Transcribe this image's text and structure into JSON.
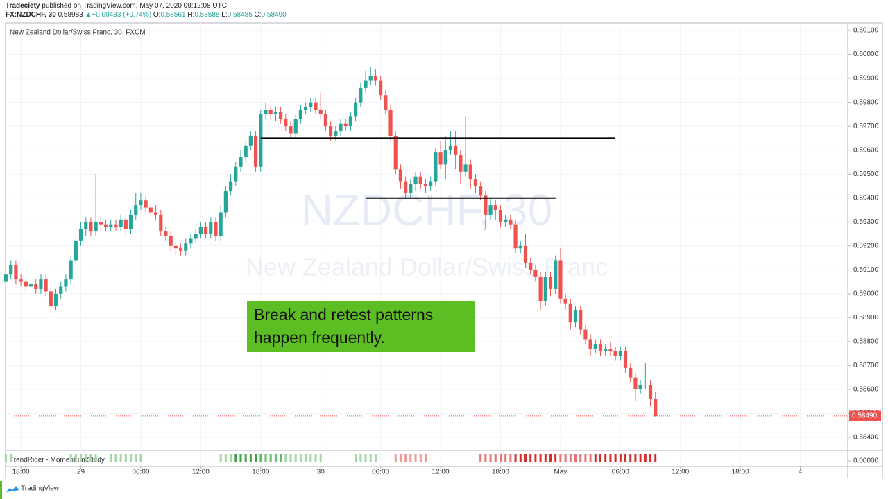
{
  "header": {
    "author": "Tradeciety",
    "published": "published on TradingView.com, May 07, 2020 09:12:08 UTC",
    "symbol": "FX:NZDCHF, 30",
    "price": "0.58983",
    "arrow": "▲",
    "change": "+0.00433 (+0.74%)",
    "o_label": "O:",
    "o": "0.58561",
    "h_label": "H:",
    "h": "0.58588",
    "l_label": "L:",
    "l": "0.58485",
    "c_label": "C:",
    "c": "0.58490"
  },
  "footer": {
    "brand": "TradingView"
  },
  "chart_data": {
    "type": "candlestick",
    "legend": "New Zealand Dollar/Swiss Franc, 30, FXCM",
    "watermark": [
      "NZDCHF, 30",
      "New Zealand Dollar/Swiss Franc"
    ],
    "annotation": [
      "Break and retest patterns",
      "happen frequently."
    ],
    "up_color": "#26a69a",
    "down_color": "#ef5350",
    "grid": true,
    "x": [
      0,
      1,
      2,
      3,
      4,
      5,
      6,
      7,
      8,
      9,
      10,
      11,
      12,
      13,
      14,
      15,
      16,
      17,
      18,
      19,
      20,
      21,
      22,
      23,
      24,
      25,
      26,
      27,
      28,
      29,
      30,
      31,
      32,
      33,
      34,
      35,
      36,
      37,
      38,
      39,
      40,
      41,
      42,
      43,
      44,
      45,
      46,
      47,
      48,
      49,
      50,
      51,
      52,
      53,
      54,
      55,
      56,
      57,
      58,
      59,
      60,
      61,
      62,
      63,
      64,
      65,
      66,
      67,
      68,
      69,
      70,
      71,
      72,
      73,
      74,
      75,
      76,
      77,
      78,
      79,
      80,
      81,
      82,
      83,
      84,
      85,
      86,
      87,
      88,
      89,
      90,
      91,
      92,
      93,
      94,
      95,
      96,
      97,
      98,
      99,
      100,
      101,
      102,
      103,
      104,
      105,
      106,
      107,
      108,
      109,
      110,
      111,
      112,
      113,
      114,
      115,
      116,
      117,
      118,
      119,
      120,
      121,
      122,
      123,
      124,
      125,
      126,
      127,
      128,
      129,
      130
    ],
    "open": [
      0.5905,
      0.5908,
      0.5912,
      0.5906,
      0.5905,
      0.5903,
      0.5904,
      0.5902,
      0.5906,
      0.5901,
      0.5895,
      0.59,
      0.5903,
      0.5906,
      0.5914,
      0.5922,
      0.5927,
      0.593,
      0.5926,
      0.593,
      0.5929,
      0.5928,
      0.5929,
      0.5928,
      0.5931,
      0.5927,
      0.5933,
      0.5937,
      0.5939,
      0.5936,
      0.5934,
      0.5933,
      0.5926,
      0.5924,
      0.592,
      0.5919,
      0.5918,
      0.5921,
      0.5923,
      0.5925,
      0.5928,
      0.5925,
      0.593,
      0.5924,
      0.5934,
      0.5943,
      0.5947,
      0.5953,
      0.5957,
      0.5962,
      0.5966,
      0.5953,
      0.5975,
      0.5977,
      0.5975,
      0.5976,
      0.5973,
      0.597,
      0.5967,
      0.5973,
      0.5977,
      0.5978,
      0.598,
      0.5977,
      0.5975,
      0.597,
      0.5966,
      0.5968,
      0.5971,
      0.597,
      0.5974,
      0.598,
      0.5986,
      0.5989,
      0.5991,
      0.5989,
      0.5983,
      0.5977,
      0.5966,
      0.5952,
      0.5947,
      0.5942,
      0.5946,
      0.5949,
      0.5946,
      0.5945,
      0.5947,
      0.5959,
      0.5954,
      0.596,
      0.5962,
      0.5958,
      0.5951,
      0.5954,
      0.5948,
      0.5945,
      0.5941,
      0.5933,
      0.5937,
      0.5935,
      0.593,
      0.5931,
      0.5929,
      0.5919,
      0.592,
      0.5913,
      0.591,
      0.5907,
      0.5897,
      0.5907,
      0.5902,
      0.5914,
      0.5898,
      0.5896,
      0.5888,
      0.5893,
      0.5885,
      0.5881,
      0.5877,
      0.5879,
      0.5876,
      0.5877,
      0.5876,
      0.5874,
      0.5876,
      0.5869,
      0.5865,
      0.586,
      0.5862,
      0.5862,
      0.5856
    ],
    "high": [
      0.591,
      0.5914,
      0.5914,
      0.5908,
      0.5907,
      0.5906,
      0.5906,
      0.5908,
      0.5908,
      0.5903,
      0.5902,
      0.5905,
      0.5908,
      0.5916,
      0.5924,
      0.593,
      0.5932,
      0.5932,
      0.595,
      0.5932,
      0.5931,
      0.5931,
      0.5931,
      0.5933,
      0.5933,
      0.5935,
      0.5942,
      0.5942,
      0.5941,
      0.5938,
      0.5937,
      0.5935,
      0.5928,
      0.5926,
      0.5922,
      0.5921,
      0.5923,
      0.5925,
      0.5927,
      0.593,
      0.593,
      0.5932,
      0.5932,
      0.5937,
      0.5945,
      0.595,
      0.5955,
      0.596,
      0.5964,
      0.5968,
      0.5968,
      0.5977,
      0.598,
      0.5979,
      0.5978,
      0.5978,
      0.5975,
      0.5972,
      0.5975,
      0.5979,
      0.598,
      0.5982,
      0.5982,
      0.5984,
      0.5977,
      0.5972,
      0.597,
      0.5973,
      0.5973,
      0.5976,
      0.5982,
      0.5988,
      0.5993,
      0.5995,
      0.5994,
      0.5991,
      0.5985,
      0.5979,
      0.5968,
      0.5954,
      0.5949,
      0.5948,
      0.5951,
      0.5951,
      0.5948,
      0.5949,
      0.5961,
      0.5964,
      0.5966,
      0.5968,
      0.5968,
      0.596,
      0.5974,
      0.5956,
      0.595,
      0.5947,
      0.5943,
      0.594,
      0.5939,
      0.5937,
      0.5933,
      0.5933,
      0.5931,
      0.5922,
      0.5925,
      0.5915,
      0.5912,
      0.5909,
      0.5909,
      0.5909,
      0.5916,
      0.5919,
      0.59,
      0.5898,
      0.5895,
      0.5895,
      0.5887,
      0.5883,
      0.5881,
      0.5881,
      0.5879,
      0.588,
      0.5878,
      0.5878,
      0.5878,
      0.5871,
      0.5867,
      0.5864,
      0.5871,
      0.5864,
      0.5859
    ],
    "low": [
      0.5903,
      0.5906,
      0.5904,
      0.5903,
      0.5901,
      0.5901,
      0.59,
      0.59,
      0.5899,
      0.5892,
      0.5893,
      0.5898,
      0.5901,
      0.5904,
      0.5912,
      0.592,
      0.5924,
      0.5924,
      0.5924,
      0.5926,
      0.5926,
      0.5926,
      0.5926,
      0.5926,
      0.5924,
      0.5925,
      0.5931,
      0.5935,
      0.5934,
      0.5932,
      0.5931,
      0.5924,
      0.5922,
      0.5918,
      0.5916,
      0.5916,
      0.5916,
      0.5919,
      0.5921,
      0.5923,
      0.5923,
      0.5923,
      0.5922,
      0.5922,
      0.5932,
      0.5941,
      0.5945,
      0.5951,
      0.5955,
      0.596,
      0.5951,
      0.5951,
      0.5973,
      0.5973,
      0.5972,
      0.5971,
      0.5968,
      0.5965,
      0.5965,
      0.5971,
      0.5975,
      0.5976,
      0.5975,
      0.5973,
      0.5968,
      0.5964,
      0.5964,
      0.5966,
      0.5968,
      0.5968,
      0.5972,
      0.5978,
      0.5984,
      0.5987,
      0.5987,
      0.5981,
      0.5975,
      0.5964,
      0.595,
      0.5944,
      0.594,
      0.594,
      0.5943,
      0.5944,
      0.5942,
      0.5943,
      0.5945,
      0.5952,
      0.5948,
      0.5958,
      0.5952,
      0.5946,
      0.5949,
      0.5944,
      0.5942,
      0.5939,
      0.5927,
      0.5931,
      0.5931,
      0.5928,
      0.5928,
      0.5927,
      0.5917,
      0.5917,
      0.5911,
      0.5908,
      0.5905,
      0.5893,
      0.5895,
      0.5899,
      0.59,
      0.5896,
      0.5893,
      0.5885,
      0.5886,
      0.5883,
      0.5879,
      0.5874,
      0.5875,
      0.5874,
      0.5874,
      0.5874,
      0.5872,
      0.5872,
      0.5867,
      0.5863,
      0.5855,
      0.5858,
      0.586,
      0.5853,
      0.58485
    ],
    "close": [
      0.5908,
      0.5912,
      0.5906,
      0.5905,
      0.5903,
      0.5904,
      0.5902,
      0.5906,
      0.5901,
      0.5895,
      0.59,
      0.5903,
      0.5906,
      0.5914,
      0.5922,
      0.5927,
      0.593,
      0.5926,
      0.593,
      0.5929,
      0.5928,
      0.5929,
      0.5928,
      0.5931,
      0.5927,
      0.5933,
      0.5937,
      0.5939,
      0.5936,
      0.5934,
      0.5933,
      0.5926,
      0.5924,
      0.592,
      0.5919,
      0.5918,
      0.5921,
      0.5923,
      0.5925,
      0.5928,
      0.5925,
      0.593,
      0.5924,
      0.5934,
      0.5943,
      0.5947,
      0.5953,
      0.5957,
      0.5962,
      0.5966,
      0.5953,
      0.5975,
      0.5977,
      0.5975,
      0.5976,
      0.5973,
      0.597,
      0.5967,
      0.5973,
      0.5977,
      0.5978,
      0.598,
      0.5977,
      0.5975,
      0.597,
      0.5966,
      0.5968,
      0.5971,
      0.597,
      0.5974,
      0.598,
      0.5986,
      0.5989,
      0.5991,
      0.5989,
      0.5983,
      0.5977,
      0.5966,
      0.5952,
      0.5947,
      0.5942,
      0.5946,
      0.5949,
      0.5946,
      0.5945,
      0.5947,
      0.5959,
      0.5954,
      0.596,
      0.5962,
      0.5958,
      0.5951,
      0.5954,
      0.5948,
      0.5945,
      0.5941,
      0.5933,
      0.5937,
      0.5935,
      0.593,
      0.5931,
      0.5929,
      0.5919,
      0.592,
      0.5913,
      0.591,
      0.5907,
      0.5897,
      0.5907,
      0.5902,
      0.5914,
      0.5898,
      0.5896,
      0.5888,
      0.5893,
      0.5885,
      0.5881,
      0.5877,
      0.5879,
      0.5876,
      0.5877,
      0.5876,
      0.5874,
      0.5876,
      0.5869,
      0.5865,
      0.586,
      0.5862,
      0.5862,
      0.5856,
      0.5849
    ],
    "last_label": "0.58490",
    "lines": [
      {
        "value": 0.5965,
        "from": 51,
        "to": 122
      },
      {
        "value": 0.594,
        "from": 72,
        "to": 110
      }
    ],
    "xlim": [
      -0.07,
      168.5
    ],
    "xticks": [
      {
        "value": 3,
        "label": "18:00"
      },
      {
        "value": 15,
        "label": "29"
      },
      {
        "value": 27,
        "label": "06:00"
      },
      {
        "value": 39,
        "label": "12:00"
      },
      {
        "value": 51,
        "label": "18:00"
      },
      {
        "value": 63,
        "label": "30"
      },
      {
        "value": 75,
        "label": "06:00"
      },
      {
        "value": 87,
        "label": "12:00"
      },
      {
        "value": 99,
        "label": "18:00"
      },
      {
        "value": 111,
        "label": "May"
      },
      {
        "value": 123,
        "label": "06:00"
      },
      {
        "value": 135,
        "label": "12:00"
      },
      {
        "value": 147,
        "label": "18:00"
      },
      {
        "value": 159,
        "label": "4"
      }
    ],
    "ylim": [
      0.58345,
      0.60132
    ],
    "yticks": [
      {
        "value": 0.601,
        "label": "0.60100"
      },
      {
        "value": 0.6,
        "label": "0.60000"
      },
      {
        "value": 0.599,
        "label": "0.59900"
      },
      {
        "value": 0.598,
        "label": "0.59800"
      },
      {
        "value": 0.597,
        "label": "0.59700"
      },
      {
        "value": 0.596,
        "label": "0.59600"
      },
      {
        "value": 0.595,
        "label": "0.59500"
      },
      {
        "value": 0.594,
        "label": "0.59400"
      },
      {
        "value": 0.593,
        "label": "0.59300"
      },
      {
        "value": 0.592,
        "label": "0.59200"
      },
      {
        "value": 0.591,
        "label": "0.59100"
      },
      {
        "value": 0.59,
        "label": "0.59000"
      },
      {
        "value": 0.589,
        "label": "0.58900"
      },
      {
        "value": 0.588,
        "label": "0.58800"
      },
      {
        "value": 0.587,
        "label": "0.58700"
      },
      {
        "value": 0.586,
        "label": "0.58600"
      },
      {
        "value": 0.585,
        "label": "0.58500"
      },
      {
        "value": 0.584,
        "label": "0.58400"
      }
    ],
    "indicator": {
      "name": "TrendRider - Momentum Study",
      "tick": {
        "value": 0,
        "label": "0.00000"
      },
      "colors": [
        "#a5d6a7",
        "#a5d6a7",
        null,
        null,
        null,
        null,
        null,
        null,
        null,
        null,
        null,
        null,
        null,
        "#a5d6a7",
        "#a5d6a7",
        "#a5d6a7",
        "#a5d6a7",
        "#a5d6a7",
        "#a5d6a7",
        null,
        null,
        "#a5d6a7",
        "#a5d6a7",
        "#a5d6a7",
        "#a5d6a7",
        "#a5d6a7",
        "#a5d6a7",
        "#a5d6a7",
        null,
        null,
        null,
        null,
        null,
        null,
        null,
        null,
        null,
        null,
        null,
        null,
        null,
        null,
        null,
        "#a5d6a7",
        "#a5d6a7",
        "#a5d6a7",
        "#43a047",
        "#43a047",
        "#43a047",
        "#43a047",
        "#43a047",
        "#66bb6a",
        "#66bb6a",
        "#66bb6a",
        "#66bb6a",
        "#66bb6a",
        "#a5d6a7",
        "#a5d6a7",
        "#a5d6a7",
        "#a5d6a7",
        "#a5d6a7",
        "#a5d6a7",
        "#a5d6a7",
        "#a5d6a7",
        null,
        null,
        null,
        null,
        null,
        null,
        "#a5d6a7",
        "#a5d6a7",
        "#a5d6a7",
        "#a5d6a7",
        "#a5d6a7",
        null,
        null,
        null,
        "#ef9a9a",
        "#ef9a9a",
        "#ef9a9a",
        "#ef9a9a",
        "#ef9a9a",
        "#ef9a9a",
        "#ef9a9a",
        null,
        null,
        null,
        null,
        null,
        null,
        null,
        null,
        null,
        null,
        "#e57373",
        "#e57373",
        "#e57373",
        "#e57373",
        "#e57373",
        "#e57373",
        "#e57373",
        "#d32f2f",
        "#d32f2f",
        "#d32f2f",
        "#d32f2f",
        "#d32f2f",
        "#d32f2f",
        "#d32f2f",
        "#d32f2f",
        "#d32f2f",
        "#e57373",
        "#e57373",
        "#e57373",
        "#e57373",
        "#e57373",
        "#e57373",
        "#e57373",
        "#d32f2f",
        "#d32f2f",
        "#d32f2f",
        "#d32f2f",
        "#d32f2f",
        "#d32f2f",
        "#d32f2f",
        "#d32f2f",
        "#d32f2f",
        "#d32f2f",
        "#d32f2f",
        "#d32f2f",
        "#d32f2f"
      ]
    }
  }
}
